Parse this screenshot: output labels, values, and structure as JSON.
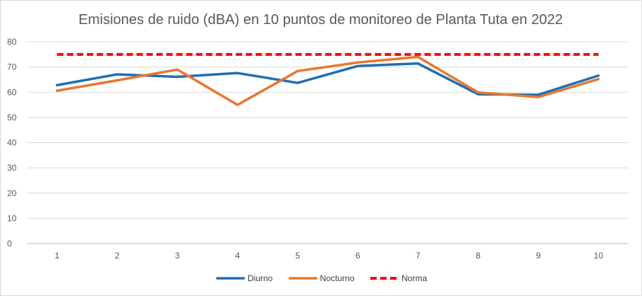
{
  "chart_data": {
    "type": "line",
    "title": "Emisiones de ruido (dBA) en 10 puntos de monitoreo de Planta Tuta en 2022",
    "xlabel": "",
    "ylabel": "",
    "categories": [
      "1",
      "2",
      "3",
      "4",
      "5",
      "6",
      "7",
      "8",
      "9",
      "10"
    ],
    "ylim": [
      0,
      80
    ],
    "yticks": [
      0,
      10,
      20,
      30,
      40,
      50,
      60,
      70,
      80
    ],
    "grid": true,
    "legend_position": "bottom",
    "series": [
      {
        "name": "Diurno",
        "color": "#1f6fb4",
        "style": "solid",
        "values": [
          62.8,
          67.1,
          66.1,
          67.6,
          63.7,
          70.4,
          71.4,
          59.2,
          59.0,
          66.6
        ]
      },
      {
        "name": "Nocturno",
        "color": "#e8772e",
        "style": "solid",
        "values": [
          60.6,
          64.7,
          69.0,
          55.0,
          68.4,
          71.8,
          74.0,
          59.9,
          58.1,
          65.2
        ]
      },
      {
        "name": "Norma",
        "color": "#ff0000",
        "style": "dashed",
        "values": [
          75,
          75,
          75,
          75,
          75,
          75,
          75,
          75,
          75,
          75
        ]
      }
    ]
  }
}
